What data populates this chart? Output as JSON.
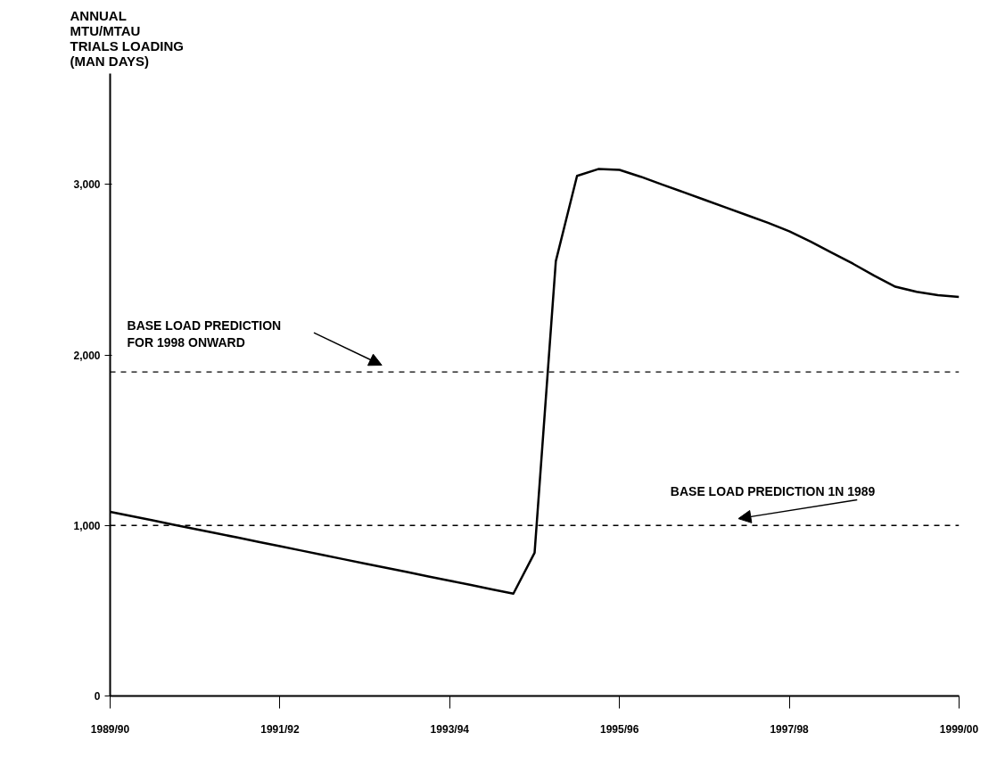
{
  "chart_data": {
    "type": "line",
    "ylabel": "ANNUAL\nMTU/MTAU\nTRIALS LOADING\n(MAN DAYS)",
    "categories": [
      "1989/90",
      null,
      null,
      null,
      null,
      null,
      null,
      null,
      "1991/92",
      null,
      null,
      null,
      null,
      null,
      null,
      null,
      "1993/94",
      null,
      null,
      null,
      null,
      null,
      null,
      null,
      "1995/96",
      null,
      null,
      null,
      null,
      null,
      null,
      null,
      "1997/98",
      null,
      null,
      null,
      null,
      null,
      null,
      null,
      "1999/00"
    ],
    "series": [
      {
        "color": "#000000",
        "values": [
          1080,
          1055,
          1030,
          1004,
          979,
          954,
          929,
          903,
          878,
          853,
          828,
          802,
          777,
          752,
          727,
          701,
          676,
          651,
          625,
          600,
          840,
          2550,
          3050,
          3090,
          3085,
          3045,
          3000,
          2955,
          2910,
          2865,
          2820,
          2775,
          2725,
          2665,
          2600,
          2535,
          2465,
          2400,
          2370,
          2350,
          2340
        ]
      }
    ],
    "ylim": [
      0,
      3650
    ],
    "yticks": [
      0,
      {
        "value": 1000,
        "label": "1,000"
      },
      {
        "value": 2000,
        "label": "2,000"
      },
      {
        "value": 3000,
        "label": "3,000"
      }
    ],
    "ref_lines": [
      {
        "axis": "y",
        "value": 1900,
        "label": "BASE LOAD PREDICTION\nFOR 1998 ONWARD",
        "color": "#000000",
        "line_style": "dashed"
      },
      {
        "axis": "y",
        "value": 1000,
        "label": "BASE LOAD PREDICTION 1N 1989",
        "color": "#000000",
        "line_style": "dashed"
      }
    ],
    "grid": false,
    "marker": "none",
    "line_style": "solid"
  }
}
